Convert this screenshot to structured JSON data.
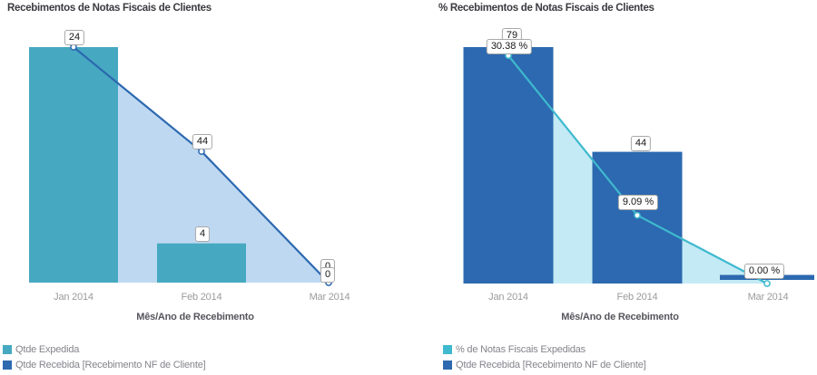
{
  "chart_data": [
    {
      "type": "bar+line",
      "title": "Recebimentos de Notas Fiscais de Clientes",
      "categories": [
        "Jan 2014",
        "Feb 2014",
        "Mar 2014"
      ],
      "xlabel": "Mês/Ano de Recebimento",
      "grid": false,
      "legend_position": "bottom-left",
      "series": [
        {
          "name": "Qtde Expedida",
          "type": "bar",
          "color": "#46A9C1",
          "values": [
            24,
            4,
            0
          ],
          "axis_max": 24
        },
        {
          "name": "Qtde Recebida [Recebimento NF de Cliente]",
          "type": "line+area",
          "color": "#2C69B0",
          "area_color": "#BFD8F1",
          "values": [
            79,
            44,
            0
          ],
          "axis_max": 79
        }
      ],
      "callouts": [
        {
          "text": "24",
          "target": "Qtde Expedida @ Jan 2014"
        },
        {
          "text": "44",
          "target": "Qtde Recebida @ Feb 2014"
        },
        {
          "text": "4",
          "target": "Qtde Expedida @ Feb 2014"
        },
        {
          "text": "0",
          "target": "overlapped label @ Mar 2014 (partially hidden)"
        },
        {
          "text": "0",
          "target": "Qtde Recebida @ Mar 2014"
        }
      ]
    },
    {
      "type": "bar+line",
      "title": "% Recebimentos de Notas Fiscais de Clientes",
      "categories": [
        "Jan 2014",
        "Feb 2014",
        "Mar 2014"
      ],
      "xlabel": "Mês/Ano de Recebimento",
      "grid": false,
      "legend_position": "bottom-left",
      "series": [
        {
          "name": "% de Notas Fiscais Expedidas",
          "type": "line+area",
          "color": "#3EB9CE",
          "area_color": "#C3EAF5",
          "values": [
            30.38,
            9.09,
            0.0
          ],
          "axis_max": 31.5
        },
        {
          "name": "Qtde Recebida [Recebimento NF de Cliente]",
          "type": "bar",
          "color": "#2C69B0",
          "values": [
            79,
            44,
            0
          ],
          "axis_max": 79
        }
      ],
      "callouts": [
        {
          "text": "79",
          "target": "Qtde Recebida @ Jan 2014 (partially hidden)"
        },
        {
          "text": "30.38 %",
          "target": "% Expedidas @ Jan 2014"
        },
        {
          "text": "44",
          "target": "Qtde Recebida @ Feb 2014"
        },
        {
          "text": "9.09 %",
          "target": "% Expedidas @ Feb 2014"
        },
        {
          "text": "0.00 %",
          "target": "% Expedidas @ Mar 2014"
        }
      ]
    }
  ]
}
